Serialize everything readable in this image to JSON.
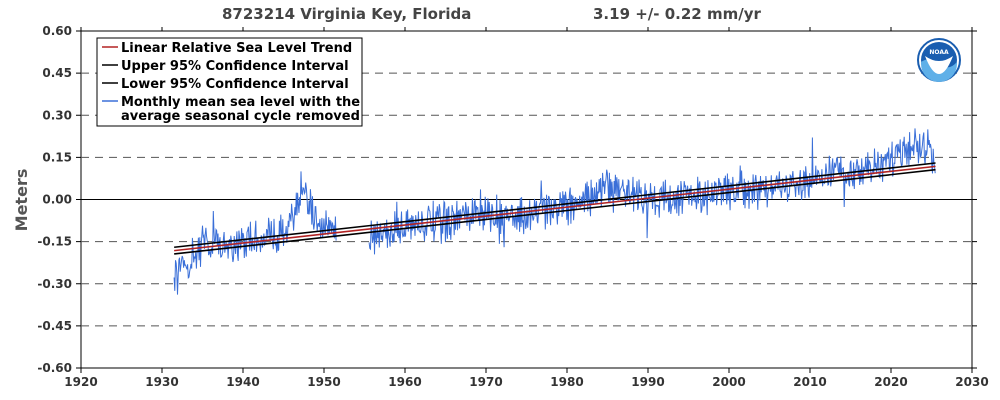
{
  "chart_data": {
    "type": "line",
    "title": "8723214 Virginia Key, Florida",
    "trend_text": "3.19 +/-  0.22 mm/yr",
    "xlabel": "",
    "ylabel": "Meters",
    "xlim": [
      1920,
      2030
    ],
    "ylim": [
      -0.6,
      0.6
    ],
    "x_ticks": [
      "1920",
      "1930",
      "1940",
      "1950",
      "1960",
      "1970",
      "1980",
      "1990",
      "2000",
      "2010",
      "2020",
      "2030"
    ],
    "y_ticks": [
      "-0.60",
      "-0.45",
      "-0.30",
      "-0.15",
      "0.00",
      "0.15",
      "0.30",
      "0.45",
      "0.60"
    ],
    "x_tick_values": [
      1920,
      1930,
      1940,
      1950,
      1960,
      1970,
      1980,
      1990,
      2000,
      2010,
      2020,
      2030
    ],
    "y_tick_values": [
      -0.6,
      -0.45,
      -0.3,
      -0.15,
      0,
      0.15,
      0.3,
      0.45,
      0.6
    ],
    "grid": "dashed horizontal lines",
    "legend_position": "top-left",
    "logo_text": "NOAA",
    "colors": {
      "trend": "#b22222",
      "ci": "#000000",
      "monthly": "#3a6fd8",
      "grid": "#555555",
      "logo_blue": "#1a5eb0"
    },
    "series": [
      {
        "name": "Linear Relative Sea Level Trend",
        "x": [
          1931.5,
          2025.5
        ],
        "y": [
          -0.182,
          0.118
        ]
      },
      {
        "name": "Upper 95% Confidence Interval",
        "x": [
          1931.5,
          2025.5
        ],
        "y": [
          -0.17,
          0.13
        ]
      },
      {
        "name": "Lower 95% Confidence Interval",
        "x": [
          1931.5,
          2025.5
        ],
        "y": [
          -0.194,
          0.106
        ]
      },
      {
        "name": "Monthly mean sea level with the average seasonal cycle removed",
        "start": 1931.5,
        "end": 2025.5,
        "step_years": 0.0833,
        "gaps": [
          [
            1951.5,
            1955.5
          ]
        ],
        "trend_slope_m_per_yr": 0.00319,
        "anchor_points": [
          {
            "x": 1932,
            "y": -0.25
          },
          {
            "x": 1935,
            "y": -0.17
          },
          {
            "x": 1940,
            "y": -0.15
          },
          {
            "x": 1945,
            "y": -0.12
          },
          {
            "x": 1947.5,
            "y": 0.0
          },
          {
            "x": 1950,
            "y": -0.1
          },
          {
            "x": 1956,
            "y": -0.13
          },
          {
            "x": 1960,
            "y": -0.09
          },
          {
            "x": 1965,
            "y": -0.08
          },
          {
            "x": 1970,
            "y": -0.05
          },
          {
            "x": 1975,
            "y": -0.06
          },
          {
            "x": 1980,
            "y": -0.02
          },
          {
            "x": 1986,
            "y": 0.05
          },
          {
            "x": 1990,
            "y": 0.0
          },
          {
            "x": 1995,
            "y": 0.01
          },
          {
            "x": 2000,
            "y": 0.03
          },
          {
            "x": 2005,
            "y": 0.04
          },
          {
            "x": 2010,
            "y": 0.06
          },
          {
            "x": 2015,
            "y": 0.1
          },
          {
            "x": 2020,
            "y": 0.13
          },
          {
            "x": 2023,
            "y": 0.2
          },
          {
            "x": 2025,
            "y": 0.15
          }
        ]
      }
    ],
    "legend": [
      "Linear Relative Sea Level Trend",
      "Upper 95% Confidence Interval",
      "Lower 95% Confidence Interval",
      "Monthly mean sea level with the",
      "average seasonal cycle removed"
    ]
  }
}
